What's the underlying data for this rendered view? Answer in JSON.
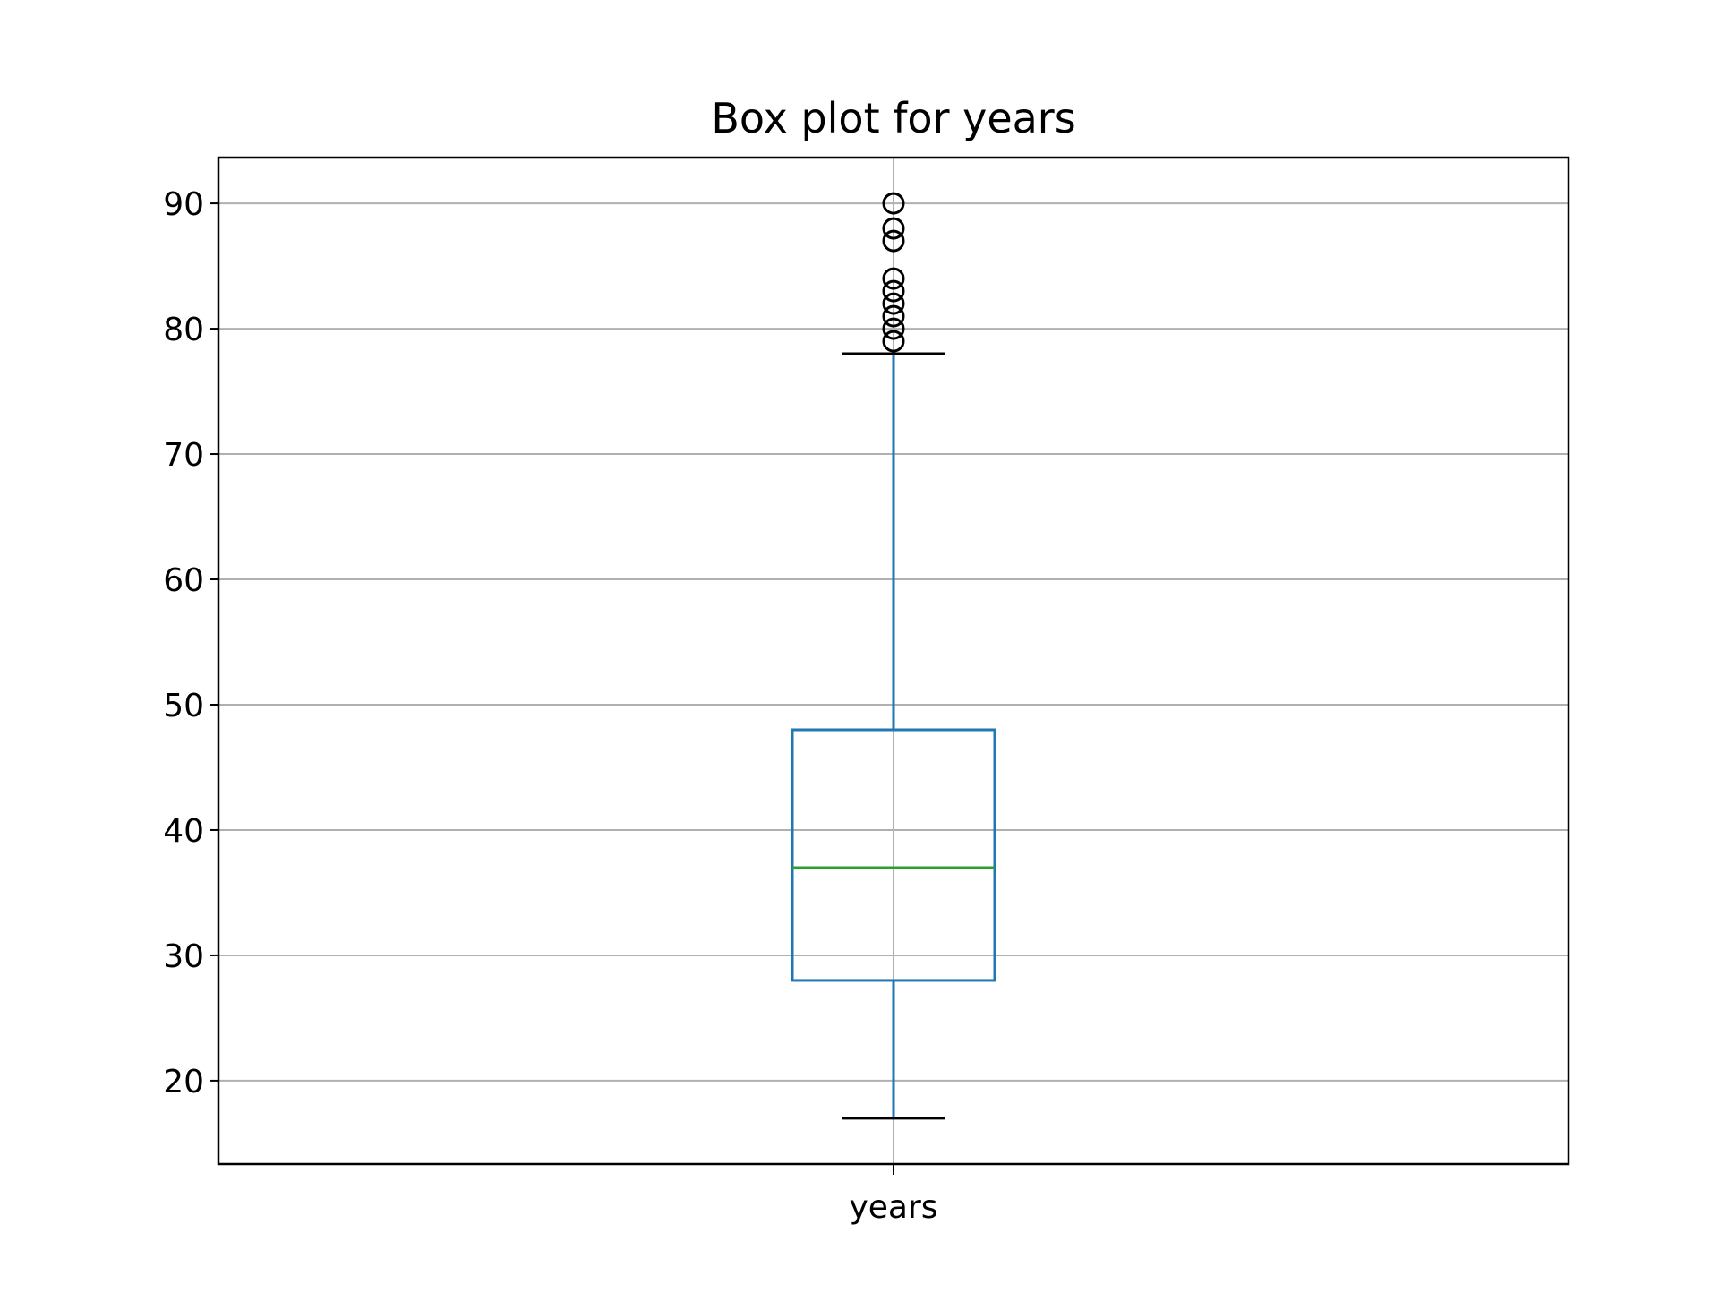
{
  "chart_data": {
    "type": "box",
    "title": "Box plot for years",
    "xlabel": "",
    "ylabel": "",
    "categories": [
      "years"
    ],
    "ylim": [
      13.35,
      93.65
    ],
    "yticks": [
      20,
      30,
      40,
      50,
      60,
      70,
      80,
      90
    ],
    "ytick_labels": [
      "20",
      "30",
      "40",
      "50",
      "60",
      "70",
      "80",
      "90"
    ],
    "grid": true,
    "legend": "none",
    "boxes": [
      {
        "category": "years",
        "whisker_low": 17,
        "q1": 28,
        "median": 37,
        "q3": 48,
        "whisker_high": 78,
        "outliers": [
          79,
          80,
          81,
          82,
          83,
          84,
          87,
          88,
          90
        ]
      }
    ],
    "colors": {
      "box": "#1f77b4",
      "median": "#2ca02c",
      "whisker_cap": "#000000",
      "outlier": "#000000",
      "grid": "#b0b0b0",
      "frame": "#000000"
    }
  }
}
